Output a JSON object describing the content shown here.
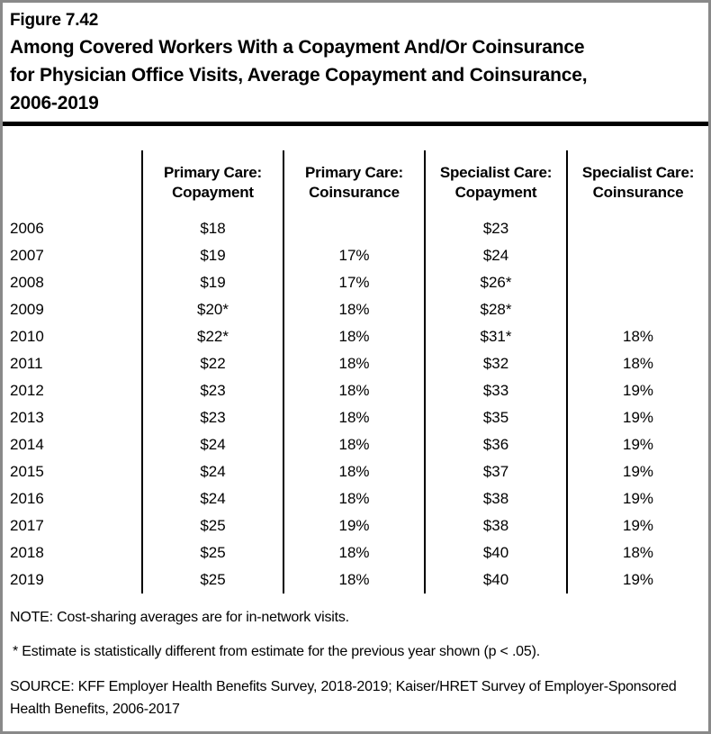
{
  "figure": {
    "label": "Figure 7.42"
  },
  "title_lines": [
    "Among Covered Workers With a Copayment And/Or Coinsurance",
    "for Physician Office Visits, Average Copayment and Coinsurance,",
    "2006-2019"
  ],
  "table": {
    "columns": [
      "Primary Care:\nCopayment",
      "Primary Care:\nCoinsurance",
      "Specialist Care:\nCopayment",
      "Specialist Care:\nCoinsurance"
    ],
    "rows": [
      {
        "year": "2006",
        "values": [
          "$18",
          "",
          "$23",
          ""
        ]
      },
      {
        "year": "2007",
        "values": [
          "$19",
          "17%",
          "$24",
          ""
        ]
      },
      {
        "year": "2008",
        "values": [
          "$19",
          "17%",
          "$26*",
          ""
        ]
      },
      {
        "year": "2009",
        "values": [
          "$20*",
          "18%",
          "$28*",
          ""
        ]
      },
      {
        "year": "2010",
        "values": [
          "$22*",
          "18%",
          "$31*",
          "18%"
        ]
      },
      {
        "year": "2011",
        "values": [
          "$22",
          "18%",
          "$32",
          "18%"
        ]
      },
      {
        "year": "2012",
        "values": [
          "$23",
          "18%",
          "$33",
          "19%"
        ]
      },
      {
        "year": "2013",
        "values": [
          "$23",
          "18%",
          "$35",
          "19%"
        ]
      },
      {
        "year": "2014",
        "values": [
          "$24",
          "18%",
          "$36",
          "19%"
        ]
      },
      {
        "year": "2015",
        "values": [
          "$24",
          "18%",
          "$37",
          "19%"
        ]
      },
      {
        "year": "2016",
        "values": [
          "$24",
          "18%",
          "$38",
          "19%"
        ]
      },
      {
        "year": "2017",
        "values": [
          "$25",
          "19%",
          "$38",
          "19%"
        ]
      },
      {
        "year": "2018",
        "values": [
          "$25",
          "18%",
          "$40",
          "18%"
        ]
      },
      {
        "year": "2019",
        "values": [
          "$25",
          "18%",
          "$40",
          "19%"
        ]
      }
    ]
  },
  "notes": {
    "note": "NOTE: Cost-sharing averages are for in-network visits.",
    "asterisk": "* Estimate is statistically different from estimate for the previous year shown (p < .05).",
    "source": "SOURCE: KFF Employer Health Benefits Survey, 2018-2019; Kaiser/HRET Survey of Employer-Sponsored Health Benefits, 2006-2017"
  },
  "colors": {
    "frame_border": "#898989",
    "rule": "#000000",
    "column_divider": "#000000",
    "text": "#000000",
    "background": "#ffffff"
  },
  "chart_data": {
    "type": "table",
    "title": "Among Covered Workers With a Copayment And/Or Coinsurance for Physician Office Visits, Average Copayment and Coinsurance, 2006-2019",
    "figure_number": "Figure 7.42",
    "categories": [
      "2006",
      "2007",
      "2008",
      "2009",
      "2010",
      "2011",
      "2012",
      "2013",
      "2014",
      "2015",
      "2016",
      "2017",
      "2018",
      "2019"
    ],
    "series": [
      {
        "name": "Primary Care: Copayment",
        "values": [
          "$18",
          "$19",
          "$19",
          "$20*",
          "$22*",
          "$22",
          "$23",
          "$23",
          "$24",
          "$24",
          "$24",
          "$25",
          "$25",
          "$25"
        ]
      },
      {
        "name": "Primary Care: Coinsurance",
        "values": [
          null,
          "17%",
          "17%",
          "18%",
          "18%",
          "18%",
          "18%",
          "18%",
          "18%",
          "18%",
          "18%",
          "19%",
          "18%",
          "18%"
        ]
      },
      {
        "name": "Specialist Care: Copayment",
        "values": [
          "$23",
          "$24",
          "$26*",
          "$28*",
          "$31*",
          "$32",
          "$33",
          "$35",
          "$36",
          "$37",
          "$38",
          "$38",
          "$40",
          "$40"
        ]
      },
      {
        "name": "Specialist Care: Coinsurance",
        "values": [
          null,
          null,
          null,
          null,
          "18%",
          "18%",
          "19%",
          "19%",
          "19%",
          "19%",
          "19%",
          "19%",
          "18%",
          "19%"
        ]
      }
    ],
    "annotations": [
      "* Estimate is statistically different from estimate for the previous year shown (p < .05).",
      "NOTE: Cost-sharing averages are for in-network visits."
    ],
    "source": "KFF Employer Health Benefits Survey, 2018-2019; Kaiser/HRET Survey of Employer-Sponsored Health Benefits, 2006-2017"
  }
}
